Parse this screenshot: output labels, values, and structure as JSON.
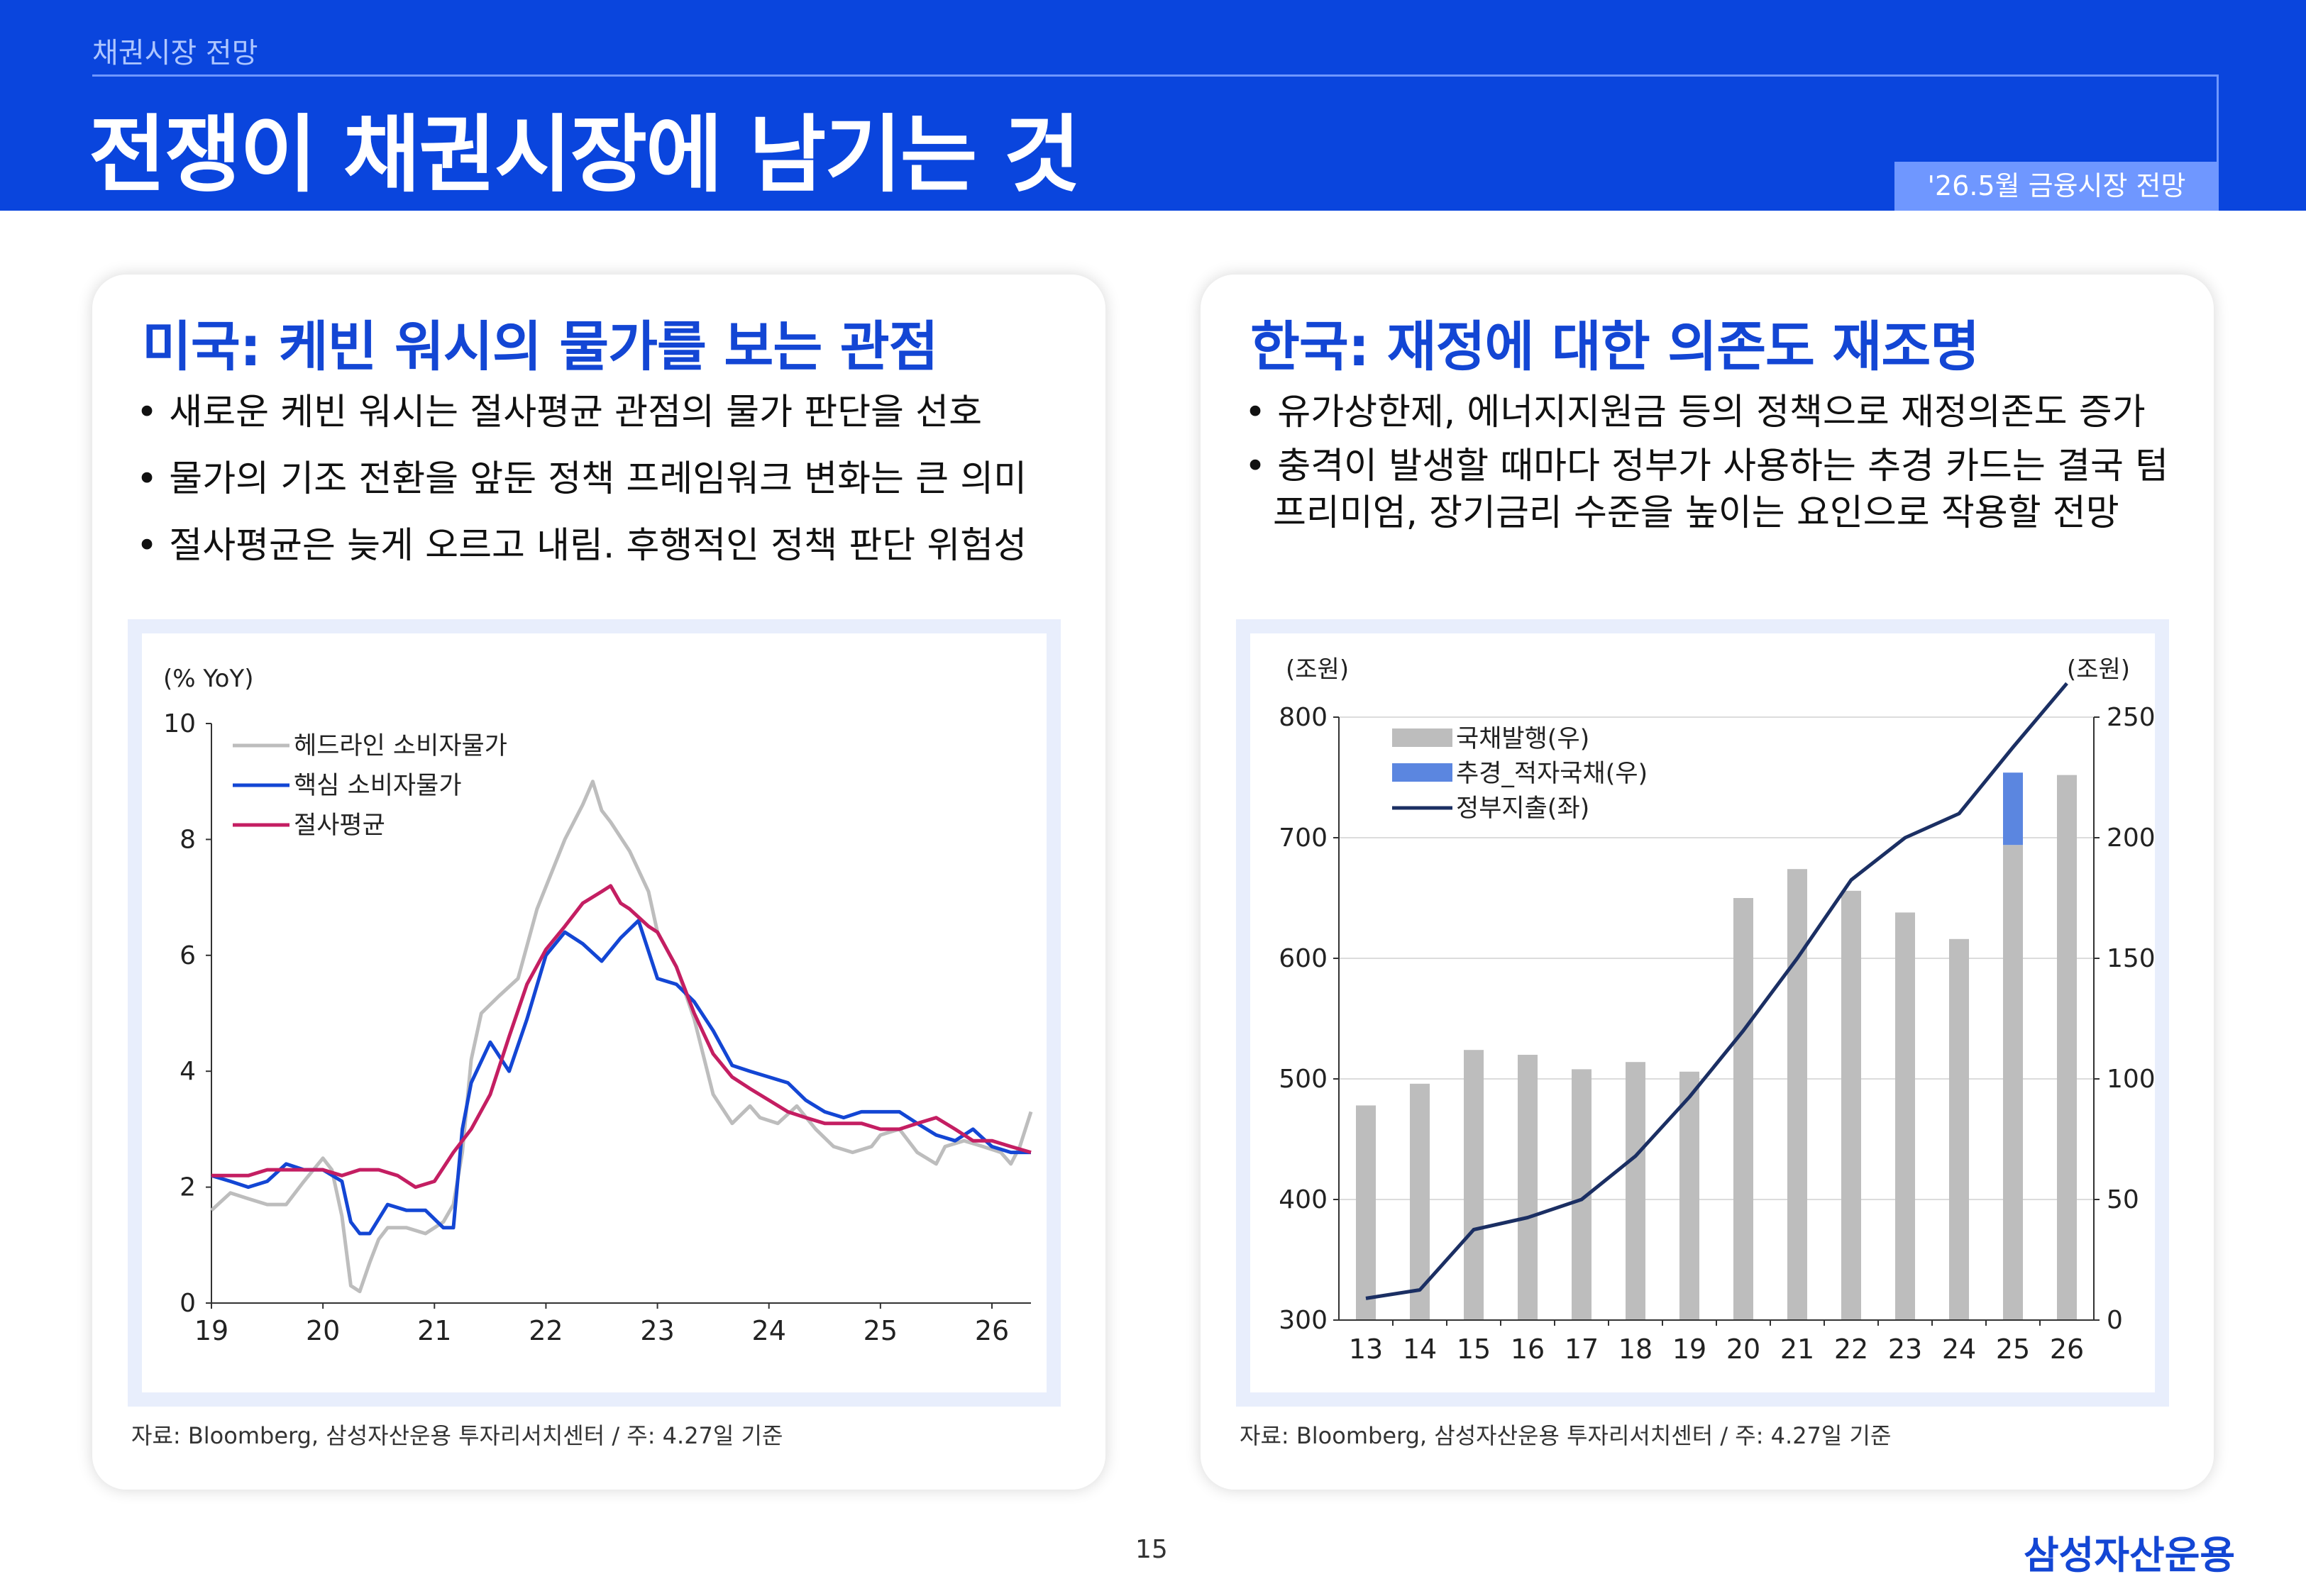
{
  "header": {
    "kicker": "채권시장 전망",
    "title": "전쟁이 채권시장에 남기는 것",
    "tag": "'26.5월 금융시장 전망"
  },
  "left": {
    "heading": "미국: 케빈 워시의 물가를 보는 관점",
    "bullets": [
      "새로운 케빈 워시는 절사평균 관점의 물가 판단을 선호",
      "물가의 기조 전환을 앞둔 정책 프레임워크 변화는 큰 의미",
      "절사평균은 늦게 오르고 내림. 후행적인 정책 판단 위험성"
    ],
    "source": "자료: Bloomberg, 삼성자산운용 투자리서치센터 / 주: 4.27일 기준"
  },
  "right": {
    "heading": "한국: 재정에 대한 의존도 재조명",
    "bullets": [
      "유가상한제, 에너지지원금 등의 정책으로 재정의존도 증가",
      "충격이 발생할 때마다 정부가 사용하는 추경 카드는 결국 텀프리미엄, 장기금리 수준을 높이는 요인으로 작용할 전망"
    ],
    "source": "자료: Bloomberg, 삼성자산운용 투자리서치센터 / 주: 4.27일 기준"
  },
  "footer": {
    "page": "15",
    "brand": "삼성자산운용"
  },
  "chart_data": [
    {
      "type": "line",
      "ylabel": "(% YoY)",
      "ylim": [
        0,
        10
      ],
      "yticks": [
        "0",
        "2",
        "4",
        "6",
        "8",
        "10"
      ],
      "xticks": [
        "19",
        "20",
        "21",
        "22",
        "23",
        "24",
        "25",
        "26"
      ],
      "xrange": [
        2019,
        2026.35
      ],
      "legend_position": "top-left",
      "grid": false,
      "series": [
        {
          "name": "헤드라인 소비자물가",
          "color": "#bdbdbd",
          "x": [
            2019.0,
            2019.17,
            2019.33,
            2019.5,
            2019.67,
            2019.83,
            2020.0,
            2020.08,
            2020.17,
            2020.25,
            2020.33,
            2020.42,
            2020.5,
            2020.58,
            2020.75,
            2020.92,
            2021.08,
            2021.17,
            2021.25,
            2021.33,
            2021.42,
            2021.58,
            2021.75,
            2021.92,
            2022.17,
            2022.25,
            2022.33,
            2022.42,
            2022.5,
            2022.58,
            2022.75,
            2022.92,
            2023.0,
            2023.17,
            2023.33,
            2023.5,
            2023.67,
            2023.83,
            2023.92,
            2024.08,
            2024.25,
            2024.42,
            2024.58,
            2024.75,
            2024.92,
            2025.0,
            2025.17,
            2025.33,
            2025.5,
            2025.58,
            2025.75,
            2025.92,
            2026.08,
            2026.17,
            2026.25,
            2026.35
          ],
          "values": [
            1.6,
            1.9,
            1.8,
            1.7,
            1.7,
            2.1,
            2.5,
            2.3,
            1.5,
            0.3,
            0.2,
            0.7,
            1.1,
            1.3,
            1.3,
            1.2,
            1.4,
            1.7,
            2.6,
            4.2,
            5.0,
            5.3,
            5.6,
            6.8,
            8.0,
            8.3,
            8.6,
            9.0,
            8.5,
            8.3,
            7.8,
            7.1,
            6.4,
            5.8,
            4.9,
            3.6,
            3.1,
            3.4,
            3.2,
            3.1,
            3.4,
            3.0,
            2.7,
            2.6,
            2.7,
            2.9,
            3.0,
            2.6,
            2.4,
            2.7,
            2.8,
            2.7,
            2.6,
            2.4,
            2.7,
            3.3
          ]
        },
        {
          "name": "핵심 소비자물가",
          "color": "#1346d4",
          "x": [
            2019.0,
            2019.17,
            2019.33,
            2019.5,
            2019.67,
            2019.83,
            2020.0,
            2020.17,
            2020.25,
            2020.33,
            2020.42,
            2020.58,
            2020.75,
            2020.92,
            2021.08,
            2021.17,
            2021.25,
            2021.33,
            2021.5,
            2021.67,
            2021.83,
            2022.0,
            2022.17,
            2022.33,
            2022.5,
            2022.67,
            2022.83,
            2023.0,
            2023.17,
            2023.33,
            2023.5,
            2023.67,
            2023.83,
            2024.0,
            2024.17,
            2024.33,
            2024.5,
            2024.67,
            2024.83,
            2025.0,
            2025.17,
            2025.33,
            2025.5,
            2025.67,
            2025.83,
            2026.0,
            2026.17,
            2026.35
          ],
          "values": [
            2.2,
            2.1,
            2.0,
            2.1,
            2.4,
            2.3,
            2.3,
            2.1,
            1.4,
            1.2,
            1.2,
            1.7,
            1.6,
            1.6,
            1.3,
            1.3,
            3.0,
            3.8,
            4.5,
            4.0,
            4.9,
            6.0,
            6.4,
            6.2,
            5.9,
            6.3,
            6.6,
            5.6,
            5.5,
            5.2,
            4.7,
            4.1,
            4.0,
            3.9,
            3.8,
            3.5,
            3.3,
            3.2,
            3.3,
            3.3,
            3.3,
            3.1,
            2.9,
            2.8,
            3.0,
            2.7,
            2.6,
            2.6
          ]
        },
        {
          "name": "절사평균",
          "color": "#c41e62",
          "x": [
            2019.0,
            2019.17,
            2019.33,
            2019.5,
            2019.67,
            2019.83,
            2020.0,
            2020.17,
            2020.33,
            2020.5,
            2020.67,
            2020.83,
            2021.0,
            2021.17,
            2021.33,
            2021.5,
            2021.67,
            2021.83,
            2022.0,
            2022.17,
            2022.33,
            2022.5,
            2022.58,
            2022.67,
            2022.75,
            2022.92,
            2023.0,
            2023.17,
            2023.33,
            2023.5,
            2023.67,
            2023.83,
            2024.0,
            2024.17,
            2024.33,
            2024.5,
            2024.67,
            2024.83,
            2025.0,
            2025.17,
            2025.33,
            2025.5,
            2025.67,
            2025.83,
            2026.0,
            2026.17,
            2026.35
          ],
          "values": [
            2.2,
            2.2,
            2.2,
            2.3,
            2.3,
            2.3,
            2.3,
            2.2,
            2.3,
            2.3,
            2.2,
            2.0,
            2.1,
            2.6,
            3.0,
            3.6,
            4.6,
            5.5,
            6.1,
            6.5,
            6.9,
            7.1,
            7.2,
            6.9,
            6.8,
            6.5,
            6.4,
            5.8,
            5.0,
            4.3,
            3.9,
            3.7,
            3.5,
            3.3,
            3.2,
            3.1,
            3.1,
            3.1,
            3.0,
            3.0,
            3.1,
            3.2,
            3.0,
            2.8,
            2.8,
            2.7,
            2.6
          ]
        }
      ]
    },
    {
      "type": "bar+line",
      "ylabel_left": "(조원)",
      "ylabel_right": "(조원)",
      "ylim_left": [
        300,
        800
      ],
      "ylim_right": [
        0,
        250
      ],
      "yticks_left": [
        "300",
        "400",
        "500",
        "600",
        "700",
        "800"
      ],
      "yticks_right": [
        "0",
        "50",
        "100",
        "150",
        "200",
        "250"
      ],
      "categories": [
        "13",
        "14",
        "15",
        "16",
        "17",
        "18",
        "19",
        "20",
        "21",
        "22",
        "23",
        "24",
        "25",
        "26"
      ],
      "legend_position": "top-left",
      "grid": true,
      "series": [
        {
          "name": "국채발행(우)",
          "type": "bar",
          "axis": "right",
          "color": "#bdbdbd",
          "values": [
            89,
            98,
            112,
            110,
            104,
            107,
            103,
            175,
            187,
            178,
            169,
            158,
            197,
            226
          ]
        },
        {
          "name": "추경_적자국채(우)",
          "type": "bar-stack",
          "axis": "right",
          "color": "#5b86e0",
          "values": [
            0,
            0,
            0,
            0,
            0,
            0,
            0,
            0,
            0,
            0,
            0,
            0,
            30,
            0
          ]
        },
        {
          "name": "정부지출(좌)",
          "type": "line",
          "axis": "left",
          "color": "#1b2f63",
          "values": [
            318,
            325,
            375,
            385,
            400,
            436,
            485,
            540,
            600,
            665,
            700,
            720,
            775,
            828
          ]
        }
      ]
    }
  ]
}
